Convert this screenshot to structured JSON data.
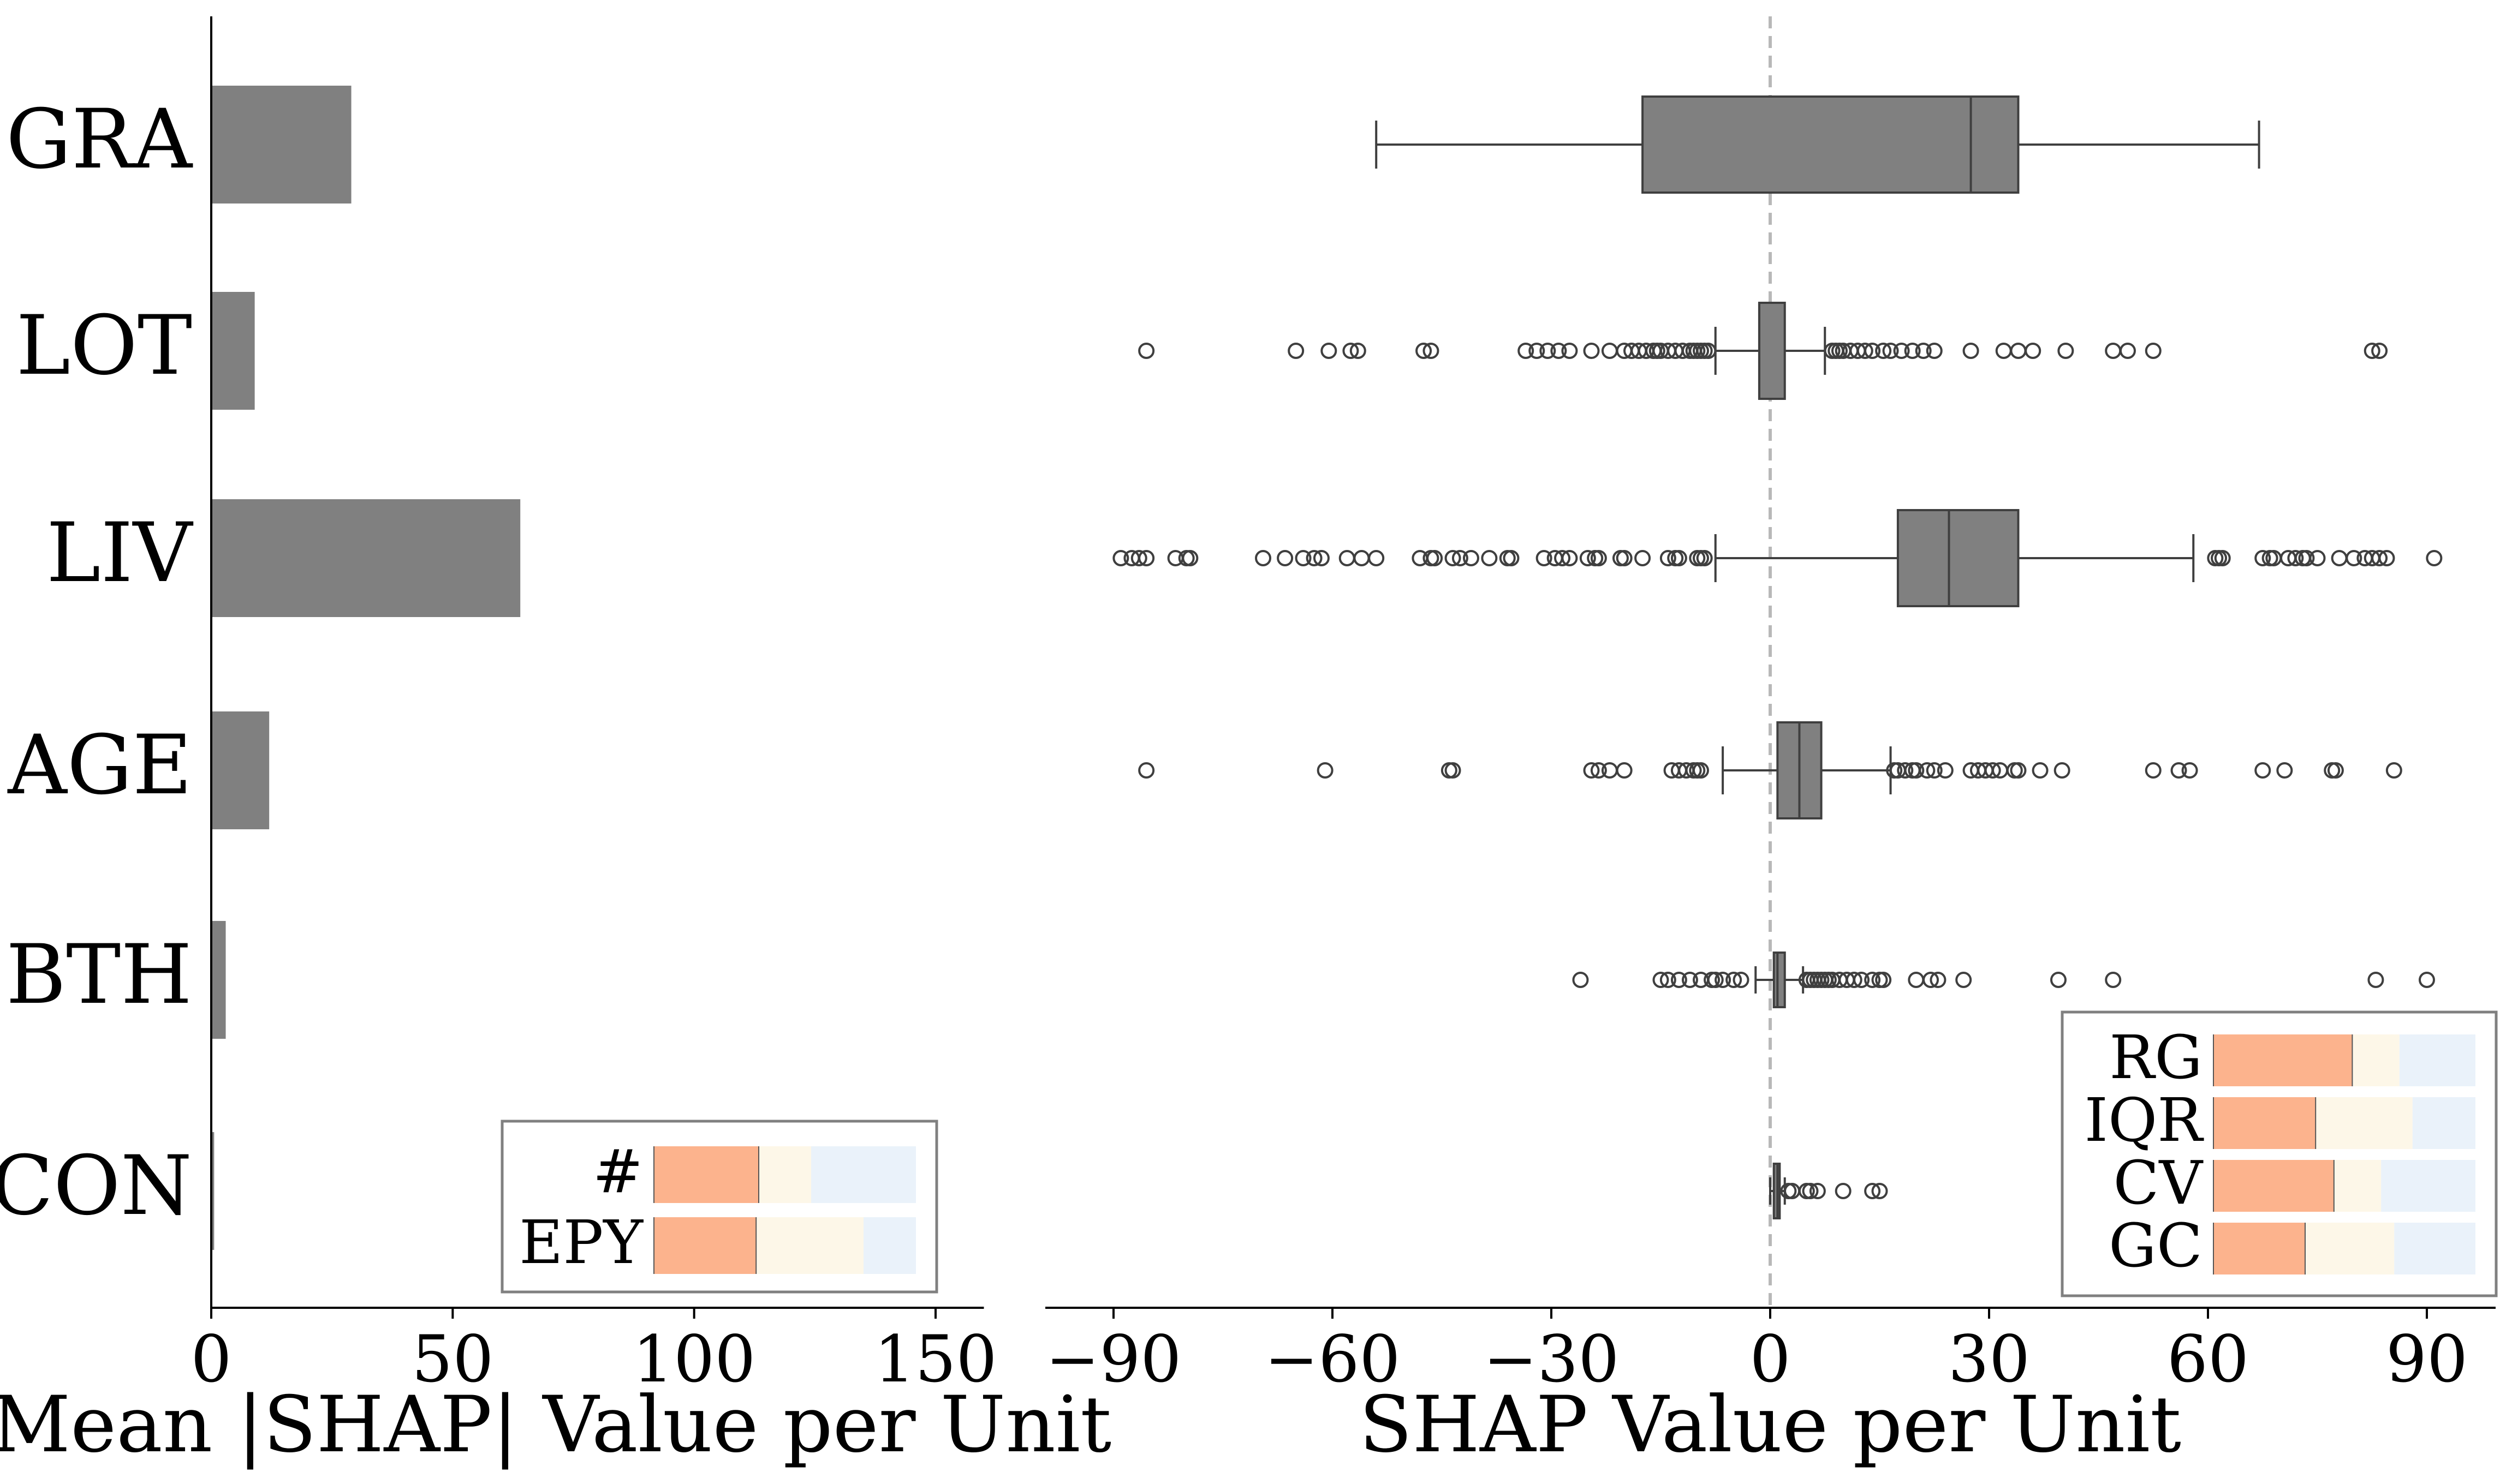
{
  "chart_data": [
    {
      "type": "bar",
      "orientation": "horizontal",
      "categories": [
        "GRA",
        "LOT",
        "LIV",
        "AGE",
        "BTH",
        "CON"
      ],
      "values": [
        29,
        9,
        64,
        12,
        3,
        0.6
      ],
      "xlabel": "Mean |SHAP| Value per Unit",
      "xlim": [
        0,
        160
      ],
      "xticks": [
        0,
        50,
        100,
        150
      ],
      "bar_color": "#808080",
      "legend": {
        "placement": "bottom-right",
        "rows": [
          {
            "label": "#",
            "segments": [
              0.4,
              0.2,
              0.4
            ]
          },
          {
            "label": "EPY",
            "segments": [
              0.39,
              0.41,
              0.2
            ]
          }
        ]
      }
    },
    {
      "type": "box",
      "orientation": "horizontal",
      "categories": [
        "GRA",
        "LOT",
        "LIV",
        "AGE",
        "BTH",
        "CON"
      ],
      "xlabel": "SHAP Value per Unit",
      "xlim": [
        -99,
        99
      ],
      "xticks": [
        -90,
        -60,
        -30,
        0,
        30,
        60,
        90
      ],
      "xtick_labels": [
        "−90",
        "−60",
        "−30",
        "0",
        "30",
        "60",
        "90"
      ],
      "reference_line": 0,
      "box_color": "#808080",
      "boxes": [
        {
          "name": "GRA",
          "whisker_low": -54,
          "q1": -17.5,
          "median": 27.5,
          "q3": 34,
          "whisker_high": 67,
          "outliers": []
        },
        {
          "name": "LOT",
          "whisker_low": -7.5,
          "q1": -1.5,
          "median": -1.5,
          "q3": 2,
          "whisker_high": 7.5,
          "outliers": [
            -85.5,
            -65,
            -60.5,
            -57.5,
            -56.5,
            -47.5,
            -46.5,
            -33.5,
            -32,
            -30.5,
            -29,
            -27.5,
            -24.5,
            -22,
            -20,
            -19,
            -18,
            -17,
            -16,
            -15.5,
            -15,
            -14,
            -13,
            -12,
            -11,
            -10.5,
            -10,
            -9.5,
            -9,
            -8.5,
            8.5,
            9,
            9.5,
            10,
            11,
            12,
            13,
            14,
            15.5,
            16.5,
            18,
            19.5,
            21,
            22.5,
            27.5,
            32,
            34,
            36,
            40.5,
            47,
            49,
            52.5,
            82.5,
            83.5
          ]
        },
        {
          "name": "LIV",
          "whisker_low": -7.5,
          "q1": 17.5,
          "median": 24.5,
          "q3": 34,
          "whisker_high": 58,
          "outliers": [
            -89,
            -87.5,
            -86.5,
            -85.5,
            -81.5,
            -80,
            -79.5,
            -69.5,
            -66.5,
            -64,
            -62.5,
            -61.5,
            -58,
            -56,
            -54,
            -48,
            -46.5,
            -46,
            -43.5,
            -42.5,
            -41,
            -38.5,
            -36,
            -35.5,
            -31,
            -29.5,
            -28.5,
            -27.5,
            -25,
            -24,
            -23.5,
            -20.5,
            -20,
            -17.5,
            -14,
            -13,
            -12.5,
            -10,
            -9.5,
            -9,
            61,
            61.5,
            62,
            67.5,
            68.5,
            69,
            71,
            72,
            73,
            73.5,
            75,
            78,
            80,
            81.5,
            82.5,
            83.5,
            84.5,
            91
          ]
        },
        {
          "name": "AGE",
          "whisker_low": -6.5,
          "q1": 1,
          "median": 4,
          "q3": 7,
          "whisker_high": 16.5,
          "outliers": [
            -85.5,
            -61,
            -44,
            -43.5,
            -24.5,
            -23.5,
            -22,
            -20,
            -13.5,
            -12.5,
            -11.5,
            -10.5,
            -10,
            -9.5,
            17,
            17.5,
            18.5,
            19.5,
            20,
            21.5,
            22.5,
            24,
            27.5,
            28.5,
            29.5,
            30.5,
            31.5,
            33.5,
            34,
            37,
            40,
            52.5,
            56,
            57.5,
            67.5,
            70.5,
            77,
            77.5,
            85.5
          ]
        },
        {
          "name": "BTH",
          "whisker_low": -2,
          "q1": 0.5,
          "median": 1,
          "q3": 2,
          "whisker_high": 4.5,
          "outliers": [
            -26,
            -15,
            -14,
            -12.5,
            -11,
            -9.5,
            -8,
            -7.5,
            -6.5,
            -5,
            -4,
            5,
            5.5,
            6,
            6.5,
            7,
            7.5,
            8,
            8.5,
            9.5,
            10.5,
            11.5,
            12.5,
            14,
            15,
            15.5,
            20,
            22,
            23,
            26.5,
            39.5,
            47,
            83,
            90
          ]
        },
        {
          "name": "CON",
          "whisker_low": 0,
          "q1": 0.5,
          "median": 1,
          "q3": 1.3,
          "whisker_high": 2,
          "outliers": [
            2.5,
            3,
            5,
            5.5,
            6.5,
            10,
            14,
            15
          ]
        }
      ],
      "legend": {
        "placement": "bottom-right",
        "rows": [
          {
            "label": "RG",
            "segments": [
              0.53,
              0.18,
              0.29
            ]
          },
          {
            "label": "IQR",
            "segments": [
              0.39,
              0.37,
              0.24
            ]
          },
          {
            "label": "CV",
            "segments": [
              0.46,
              0.18,
              0.36
            ]
          },
          {
            "label": "GC",
            "segments": [
              0.35,
              0.34,
              0.31
            ]
          }
        ]
      }
    }
  ],
  "legend_colors": [
    "#fcb38d",
    "#fdf7e8",
    "#eaf2fa"
  ]
}
